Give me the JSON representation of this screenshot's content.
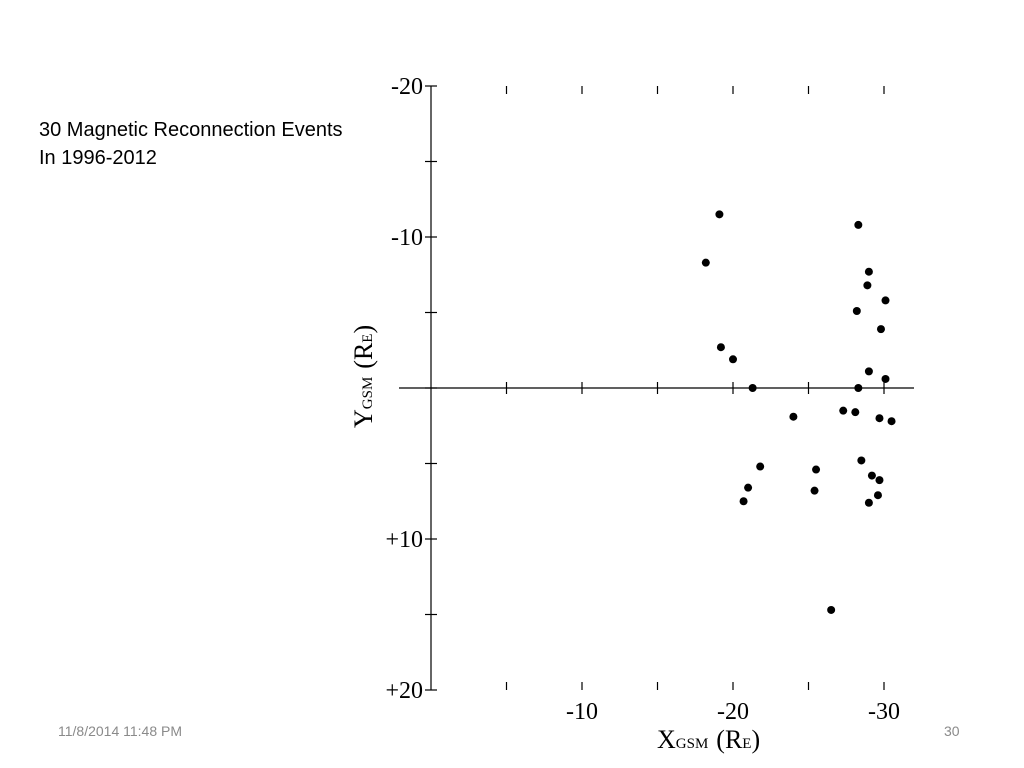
{
  "slide": {
    "title_line1": "30 Magnetic Reconnection Events",
    "title_line2": "In 1996-2012",
    "date": "11/8/2014 11:48 PM",
    "number": "30"
  },
  "chart_data": {
    "type": "scatter",
    "xlabel_main": "X",
    "xlabel_sub": "GSM",
    "xlabel_unit": "(R",
    "xlabel_unit_sub": "E",
    "xlabel_unit_close": ")",
    "ylabel_main": "Y",
    "ylabel_sub": "GSM",
    "ylabel_unit": "(R",
    "ylabel_unit_sub": "E",
    "ylabel_unit_close": ")",
    "xlim": [
      0,
      -32
    ],
    "ylim": [
      -20,
      20
    ],
    "x_tick_labels": [
      {
        "value": -10,
        "label": "-10"
      },
      {
        "value": -20,
        "label": "-20"
      },
      {
        "value": -30,
        "label": "-30"
      }
    ],
    "y_tick_labels": [
      {
        "value": -20,
        "label": "-20"
      },
      {
        "value": -10,
        "label": "-10"
      },
      {
        "value": 10,
        "label": "+10"
      },
      {
        "value": 20,
        "label": "+20"
      }
    ],
    "marker_color": "#000000",
    "points": [
      {
        "x": -19.1,
        "y": -11.5
      },
      {
        "x": -18.2,
        "y": -8.3
      },
      {
        "x": -19.2,
        "y": -2.7
      },
      {
        "x": -20.0,
        "y": -1.9
      },
      {
        "x": -21.3,
        "y": 0.0
      },
      {
        "x": -24.0,
        "y": 1.9
      },
      {
        "x": -21.8,
        "y": 5.2
      },
      {
        "x": -21.0,
        "y": 6.6
      },
      {
        "x": -20.7,
        "y": 7.5
      },
      {
        "x": -25.5,
        "y": 5.4
      },
      {
        "x": -25.4,
        "y": 6.8
      },
      {
        "x": -26.5,
        "y": 14.7
      },
      {
        "x": -28.3,
        "y": -10.8
      },
      {
        "x": -29.0,
        "y": -7.7
      },
      {
        "x": -28.9,
        "y": -6.8
      },
      {
        "x": -28.2,
        "y": -5.1
      },
      {
        "x": -30.1,
        "y": -5.8
      },
      {
        "x": -29.8,
        "y": -3.9
      },
      {
        "x": -29.0,
        "y": -1.1
      },
      {
        "x": -30.1,
        "y": -0.6
      },
      {
        "x": -28.3,
        "y": 0.0
      },
      {
        "x": -28.1,
        "y": 1.6
      },
      {
        "x": -27.3,
        "y": 1.5
      },
      {
        "x": -29.7,
        "y": 2.0
      },
      {
        "x": -30.5,
        "y": 2.2
      },
      {
        "x": -28.5,
        "y": 4.8
      },
      {
        "x": -29.2,
        "y": 5.8
      },
      {
        "x": -29.7,
        "y": 6.1
      },
      {
        "x": -29.6,
        "y": 7.1
      },
      {
        "x": -29.0,
        "y": 7.6
      }
    ]
  }
}
